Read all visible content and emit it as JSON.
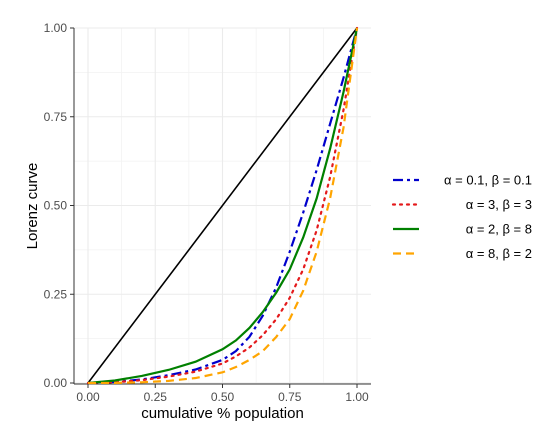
{
  "chart_data": {
    "type": "line",
    "title": "",
    "xlabel": "cumulative % population",
    "ylabel": "Lorenz curve",
    "xlim": [
      0,
      1
    ],
    "ylim": [
      0,
      1
    ],
    "x_ticks": [
      "0.00",
      "0.25",
      "0.50",
      "0.75",
      "1.00"
    ],
    "y_ticks": [
      "0.00",
      "0.25",
      "0.50",
      "0.75",
      "1.00"
    ],
    "grid": true,
    "legend_position": "right",
    "equality_line": {
      "x": [
        0,
        1
      ],
      "y": [
        0,
        1
      ],
      "color": "#000000"
    },
    "series": [
      {
        "name": "α = 0.1, β = 0.1",
        "color": "#0000cc",
        "dash": "dashdot",
        "x": [
          0,
          0.1,
          0.2,
          0.3,
          0.4,
          0.5,
          0.55,
          0.6,
          0.65,
          0.7,
          0.75,
          0.8,
          0.85,
          0.9,
          0.95,
          1.0
        ],
        "y": [
          0,
          0.003,
          0.01,
          0.022,
          0.038,
          0.065,
          0.09,
          0.13,
          0.19,
          0.27,
          0.37,
          0.48,
          0.6,
          0.73,
          0.86,
          1.0
        ]
      },
      {
        "name": "α = 3, β = 3",
        "color": "#e41a1c",
        "dash": "dotted",
        "x": [
          0,
          0.1,
          0.2,
          0.3,
          0.4,
          0.5,
          0.55,
          0.6,
          0.65,
          0.7,
          0.75,
          0.8,
          0.85,
          0.9,
          0.95,
          1.0
        ],
        "y": [
          0,
          0.002,
          0.008,
          0.018,
          0.032,
          0.055,
          0.075,
          0.1,
          0.135,
          0.18,
          0.24,
          0.32,
          0.43,
          0.58,
          0.77,
          1.0
        ]
      },
      {
        "name": "α = 2, β = 8",
        "color": "#008000",
        "dash": "solid",
        "x": [
          0,
          0.1,
          0.2,
          0.3,
          0.4,
          0.5,
          0.55,
          0.6,
          0.65,
          0.7,
          0.75,
          0.8,
          0.85,
          0.9,
          0.95,
          1.0
        ],
        "y": [
          0,
          0.007,
          0.02,
          0.037,
          0.06,
          0.095,
          0.12,
          0.155,
          0.2,
          0.255,
          0.32,
          0.41,
          0.52,
          0.66,
          0.82,
          1.0
        ]
      },
      {
        "name": "α = 8, β = 2",
        "color": "#ffa500",
        "dash": "dashed",
        "x": [
          0,
          0.1,
          0.2,
          0.3,
          0.4,
          0.5,
          0.55,
          0.6,
          0.65,
          0.7,
          0.75,
          0.8,
          0.85,
          0.9,
          0.95,
          1.0
        ],
        "y": [
          0,
          0.0003,
          0.002,
          0.006,
          0.014,
          0.03,
          0.045,
          0.065,
          0.09,
          0.13,
          0.18,
          0.26,
          0.37,
          0.52,
          0.72,
          1.0
        ]
      }
    ]
  }
}
